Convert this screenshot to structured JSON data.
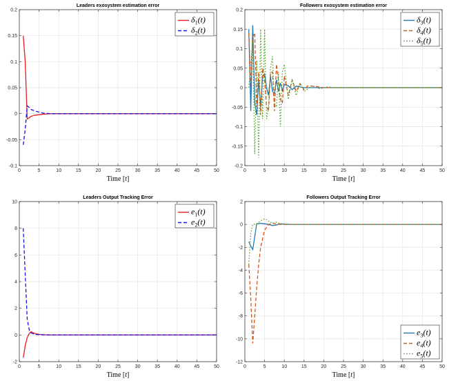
{
  "colors": {
    "red": "#e8191e",
    "blue": "#1010e8",
    "teal": "#1f77b4",
    "orange": "#d95319",
    "green": "#4fa32a",
    "axis": "#262626",
    "grid": "#e3e3e3"
  },
  "chart_data": [
    {
      "type": "line",
      "title": "Leaders exosystem estimation error",
      "xlabel": "Time [t]",
      "ylabel": "",
      "xlim": [
        0,
        50
      ],
      "ylim": [
        -0.1,
        0.2
      ],
      "xticks": [
        0,
        5,
        10,
        15,
        20,
        25,
        30,
        35,
        40,
        45,
        50
      ],
      "yticks": [
        -0.1,
        -0.05,
        0,
        0.05,
        0.1,
        0.15,
        0.2
      ],
      "yticklabels": [
        "-0.1",
        "-0.05",
        "0",
        "0.05",
        "0.1",
        "0.15",
        "0.2"
      ],
      "grid": true,
      "legend": "top-right",
      "series": [
        {
          "name": "δ1(t)",
          "color": "#e8191e",
          "dash": "solid",
          "x": [
            1,
            1.5,
            2,
            2.5,
            3,
            4,
            5,
            6,
            8,
            10,
            50
          ],
          "y": [
            0.15,
            0.1,
            -0.01,
            -0.008,
            -0.005,
            -0.003,
            -0.002,
            -0.001,
            0,
            0,
            0
          ]
        },
        {
          "name": "δ2(t)",
          "color": "#1010e8",
          "dash": "dashed",
          "x": [
            1,
            1.5,
            2,
            2.5,
            3,
            4,
            5,
            6,
            8,
            10,
            50
          ],
          "y": [
            -0.06,
            -0.03,
            0.015,
            0.012,
            0.008,
            0.005,
            0.003,
            0.001,
            0,
            0,
            0
          ]
        }
      ]
    },
    {
      "type": "line",
      "title": "Followers exosystem estimation error",
      "xlabel": "Time [t]",
      "ylabel": "",
      "xlim": [
        0,
        50
      ],
      "ylim": [
        -0.2,
        0.2
      ],
      "xticks": [
        0,
        5,
        10,
        15,
        20,
        25,
        30,
        35,
        40,
        45,
        50
      ],
      "yticks": [
        -0.2,
        -0.15,
        -0.1,
        -0.05,
        0,
        0.05,
        0.1,
        0.15,
        0.2
      ],
      "yticklabels": [
        "-0.2",
        "-0.15",
        "-0.1",
        "-0.05",
        "0",
        "0.05",
        "0.1",
        "0.15",
        "0.2"
      ],
      "grid": true,
      "legend": "top-right",
      "series": [
        {
          "name": "δ3(t)",
          "color": "#1f77b4",
          "dash": "solid",
          "x": [
            1,
            1.5,
            2,
            2.5,
            3,
            3.5,
            4,
            4.5,
            5,
            5.5,
            6,
            6.5,
            7,
            7.5,
            8,
            8.5,
            9,
            9.5,
            10,
            11,
            12,
            13,
            14,
            15,
            50
          ],
          "y": [
            0.15,
            -0.06,
            0.16,
            -0.04,
            -0.07,
            0.02,
            -0.05,
            0.03,
            0.035,
            0.0,
            -0.02,
            0.03,
            -0.01,
            -0.015,
            0.02,
            -0.01,
            0.012,
            -0.008,
            0.008,
            0.005,
            -0.005,
            0.004,
            0.002,
            0,
            0
          ]
        },
        {
          "name": "δ4(t)",
          "color": "#d95319",
          "dash": "dashed",
          "x": [
            1,
            1.5,
            2,
            2.5,
            3,
            3.5,
            4,
            4.5,
            5,
            5.5,
            6,
            6.5,
            7,
            7.5,
            8,
            8.5,
            9,
            9.5,
            10,
            11,
            12,
            13,
            14,
            15,
            16,
            18,
            20,
            50
          ],
          "y": [
            0.14,
            0.0,
            0.13,
            0.14,
            -0.05,
            0.04,
            -0.07,
            0.05,
            0.02,
            -0.05,
            -0.06,
            0.04,
            0.04,
            -0.06,
            0.06,
            0.02,
            -0.03,
            -0.04,
            0.03,
            -0.02,
            0.02,
            -0.01,
            0.01,
            -0.005,
            0.005,
            0.003,
            0,
            0
          ]
        },
        {
          "name": "δ5(t)",
          "color": "#4fa32a",
          "dash": "dotted",
          "x": [
            1,
            2,
            2.5,
            3,
            3.5,
            4,
            4.5,
            5,
            5.5,
            6,
            6.5,
            7,
            7.5,
            8,
            8.5,
            9,
            9.5,
            10,
            11,
            12,
            13,
            14,
            15,
            17,
            19,
            21,
            23,
            50
          ],
          "y": [
            0.0,
            0.12,
            -0.17,
            0.07,
            -0.18,
            0.15,
            -0.08,
            0.15,
            -0.08,
            -0.05,
            0.05,
            0.08,
            -0.04,
            -0.05,
            0.04,
            -0.1,
            0.04,
            0.06,
            -0.03,
            0.02,
            -0.02,
            0.012,
            -0.01,
            0.005,
            -0.003,
            0.002,
            0,
            0
          ]
        }
      ]
    },
    {
      "type": "line",
      "title": "Leaders Output Tracking Error",
      "xlabel": "Time [t]",
      "ylabel": "",
      "xlim": [
        0,
        50
      ],
      "ylim": [
        -2,
        10
      ],
      "xticks": [
        0,
        5,
        10,
        15,
        20,
        25,
        30,
        35,
        40,
        45,
        50
      ],
      "yticks": [
        -2,
        0,
        2,
        4,
        6,
        8,
        10
      ],
      "yticklabels": [
        "-2",
        "0",
        "2",
        "4",
        "6",
        "8",
        "10"
      ],
      "grid": true,
      "legend": "top-right",
      "series": [
        {
          "name": "e1(t)",
          "color": "#e8191e",
          "dash": "solid",
          "x": [
            1,
            1.5,
            2,
            2.5,
            3,
            4,
            5,
            6,
            8,
            10,
            50
          ],
          "y": [
            -1.7,
            -0.8,
            -0.2,
            0.1,
            0.25,
            0.1,
            0.05,
            0.02,
            0,
            0,
            0
          ]
        },
        {
          "name": "e2(t)",
          "color": "#1010e8",
          "dash": "dashed",
          "x": [
            1,
            1.5,
            2,
            2.5,
            3,
            4,
            5,
            6,
            8,
            10,
            50
          ],
          "y": [
            8,
            4.5,
            1.2,
            0.4,
            0.15,
            0.05,
            0.02,
            0.01,
            0,
            0,
            0
          ]
        }
      ]
    },
    {
      "type": "line",
      "title": "Followers Output Tracking Error",
      "xlabel": "Time [t]",
      "ylabel": "",
      "xlim": [
        0,
        50
      ],
      "ylim": [
        -12,
        2
      ],
      "xticks": [
        0,
        5,
        10,
        15,
        20,
        25,
        30,
        35,
        40,
        45,
        50
      ],
      "yticks": [
        -12,
        -10,
        -8,
        -6,
        -4,
        -2,
        0,
        2
      ],
      "yticklabels": [
        "-12",
        "-10",
        "-8",
        "-6",
        "-4",
        "-2",
        "0",
        "2"
      ],
      "grid": true,
      "legend": "bottom-right",
      "series": [
        {
          "name": "e3(t)",
          "color": "#1f77b4",
          "dash": "solid",
          "x": [
            1,
            1.5,
            2,
            3,
            4,
            5,
            6,
            7,
            8,
            9,
            10,
            12,
            50
          ],
          "y": [
            -1.5,
            -1.9,
            -2.2,
            0.05,
            0.1,
            0.05,
            0.0,
            -0.1,
            -0.05,
            0.05,
            0.02,
            0,
            0
          ]
        },
        {
          "name": "e4(t)",
          "color": "#d95319",
          "dash": "dashed",
          "x": [
            1,
            1.5,
            2,
            2.5,
            3,
            3.5,
            4,
            5,
            6,
            7,
            8,
            9,
            10,
            12,
            50
          ],
          "y": [
            -3.5,
            -6.5,
            -10.4,
            -8.0,
            -5.5,
            -3.5,
            -2.0,
            -0.5,
            0.0,
            0.1,
            0.05,
            0.0,
            0.0,
            0,
            0
          ]
        },
        {
          "name": "e5(t)",
          "color": "#4fa32a",
          "dash": "dotted",
          "x": [
            1,
            1.5,
            2,
            3,
            4,
            5,
            6,
            7,
            8,
            9,
            10,
            12,
            50
          ],
          "y": [
            -3.5,
            -0.8,
            0.0,
            0.05,
            0.3,
            0.5,
            0.3,
            0.1,
            0.2,
            0.05,
            0.05,
            0,
            0
          ]
        }
      ]
    }
  ]
}
